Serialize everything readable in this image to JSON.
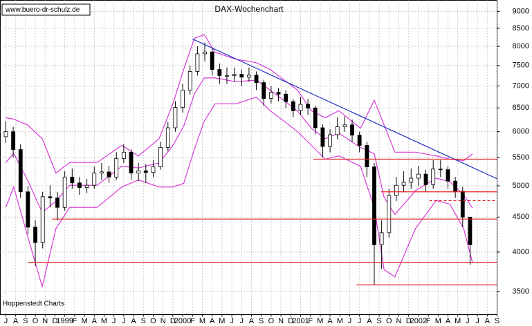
{
  "chart_data": {
    "type": "candlestick",
    "title": "DAX-Wochenchart",
    "watermark": "www.buero-dr-schulz.de",
    "source": "Hoppenstedt Charts",
    "log_y": true,
    "grid": true,
    "xlim": [
      -0.56,
      50
    ],
    "ylim": [
      3240,
      9340
    ],
    "yticks": [
      3500,
      4000,
      4500,
      5000,
      5500,
      6000,
      6500,
      7000,
      7500,
      8000,
      8500,
      9000
    ],
    "xticks": [
      {
        "value": 0,
        "label": "J"
      },
      {
        "value": 1,
        "label": "A"
      },
      {
        "value": 2,
        "label": "S"
      },
      {
        "value": 3,
        "label": "O"
      },
      {
        "value": 4,
        "label": "N"
      },
      {
        "value": 5,
        "label": "D"
      },
      {
        "value": 6,
        "label": "1999"
      },
      {
        "value": 7,
        "label": "F"
      },
      {
        "value": 8,
        "label": "M"
      },
      {
        "value": 9,
        "label": "A"
      },
      {
        "value": 10,
        "label": "M"
      },
      {
        "value": 11,
        "label": "J"
      },
      {
        "value": 12,
        "label": "J"
      },
      {
        "value": 13,
        "label": "A"
      },
      {
        "value": 14,
        "label": "S"
      },
      {
        "value": 15,
        "label": "O"
      },
      {
        "value": 16,
        "label": "N"
      },
      {
        "value": 17,
        "label": "D"
      },
      {
        "value": 18,
        "label": "2000"
      },
      {
        "value": 19,
        "label": "F"
      },
      {
        "value": 20,
        "label": "M"
      },
      {
        "value": 21,
        "label": "A"
      },
      {
        "value": 22,
        "label": "M"
      },
      {
        "value": 23,
        "label": "J"
      },
      {
        "value": 24,
        "label": "J"
      },
      {
        "value": 25,
        "label": "A"
      },
      {
        "value": 26,
        "label": "S"
      },
      {
        "value": 27,
        "label": "O"
      },
      {
        "value": 28,
        "label": "N"
      },
      {
        "value": 29,
        "label": "D"
      },
      {
        "value": 30,
        "label": "2001"
      },
      {
        "value": 31,
        "label": "F"
      },
      {
        "value": 32,
        "label": "M"
      },
      {
        "value": 33,
        "label": "A"
      },
      {
        "value": 34,
        "label": "M"
      },
      {
        "value": 35,
        "label": "J"
      },
      {
        "value": 36,
        "label": "J"
      },
      {
        "value": 37,
        "label": "A"
      },
      {
        "value": 38,
        "label": "S"
      },
      {
        "value": 39,
        "label": "O"
      },
      {
        "value": 40,
        "label": "N"
      },
      {
        "value": 41,
        "label": "D"
      },
      {
        "value": 42,
        "label": "2002"
      },
      {
        "value": 43,
        "label": "F"
      },
      {
        "value": 44,
        "label": "M"
      },
      {
        "value": 45,
        "label": "A"
      },
      {
        "value": 46,
        "label": "M"
      },
      {
        "value": 47,
        "label": "J"
      },
      {
        "value": 48,
        "label": "J"
      },
      {
        "value": 49,
        "label": "A"
      },
      {
        "value": 50,
        "label": "S"
      }
    ],
    "bars": {
      "x": [
        0,
        0.75,
        1.5,
        2.25,
        3,
        3.75,
        4.5,
        5.25,
        6,
        6.75,
        7.5,
        8.25,
        9,
        9.75,
        10.5,
        11.25,
        12,
        12.75,
        13.5,
        14.25,
        15,
        15.75,
        16.5,
        17.25,
        18,
        18.75,
        19.5,
        20.25,
        21,
        21.75,
        22.5,
        23.25,
        24,
        24.75,
        25.5,
        26.25,
        27,
        27.75,
        28.5,
        29.25,
        30,
        30.75,
        31.5,
        32.25,
        33,
        33.75,
        34.5,
        35.25,
        36,
        36.75,
        37.5,
        38.25,
        39,
        39.75,
        40.5,
        41.25,
        42,
        42.75,
        43.5,
        44.25,
        45,
        45.75,
        46.5,
        47.25
      ],
      "open": [
        5900,
        6000,
        5650,
        4900,
        4350,
        4130,
        4820,
        4800,
        4650,
        5150,
        5050,
        4970,
        5010,
        5220,
        5240,
        5150,
        5480,
        5600,
        5220,
        5260,
        5230,
        5330,
        5690,
        6080,
        6510,
        6900,
        7350,
        7800,
        7850,
        7400,
        7250,
        7250,
        7280,
        7210,
        7260,
        7080,
        6710,
        6850,
        6810,
        6640,
        6440,
        6580,
        6500,
        6080,
        5710,
        5940,
        6100,
        6140,
        5930,
        5730,
        5330,
        4100,
        4270,
        4840,
        5010,
        5060,
        5130,
        5200,
        5020,
        5290,
        5280,
        5080,
        4910,
        4500
      ],
      "high": [
        6220,
        6100,
        5750,
        5000,
        4450,
        4900,
        5010,
        4900,
        5250,
        5300,
        5150,
        5120,
        5330,
        5400,
        5350,
        5600,
        5750,
        5650,
        5400,
        5380,
        5450,
        5800,
        6200,
        6650,
        7050,
        7500,
        8000,
        8100,
        7950,
        7550,
        7450,
        7450,
        7400,
        7450,
        7350,
        7150,
        7000,
        6950,
        6900,
        6700,
        6750,
        6700,
        6550,
        6150,
        6050,
        6300,
        6320,
        6250,
        6000,
        5800,
        5400,
        4450,
        4950,
        5150,
        5250,
        5300,
        5350,
        5280,
        5450,
        5450,
        5350,
        5150,
        4980,
        4500
      ],
      "low": [
        5780,
        5500,
        4800,
        4250,
        3820,
        4050,
        4650,
        4450,
        4600,
        4950,
        4850,
        4880,
        4950,
        5100,
        5050,
        5100,
        5400,
        5100,
        5080,
        5050,
        5150,
        5280,
        5620,
        6000,
        6400,
        6800,
        7250,
        7600,
        7250,
        7050,
        7050,
        7100,
        7000,
        7100,
        6900,
        6550,
        6600,
        6650,
        6500,
        6300,
        6350,
        6350,
        5950,
        5500,
        5600,
        5850,
        6000,
        5800,
        5600,
        5150,
        3580,
        3780,
        4200,
        4750,
        4900,
        4950,
        5000,
        4900,
        4950,
        5150,
        4950,
        4800,
        4350,
        3830
      ],
      "close": [
        6000,
        5650,
        4900,
        4350,
        4130,
        4820,
        4800,
        4650,
        5150,
        5050,
        4970,
        5010,
        5220,
        5240,
        5150,
        5480,
        5600,
        5220,
        5260,
        5230,
        5330,
        5690,
        6080,
        6510,
        6900,
        7350,
        7800,
        7850,
        7400,
        7250,
        7250,
        7280,
        7210,
        7260,
        7080,
        6710,
        6850,
        6810,
        6640,
        6440,
        6580,
        6500,
        6080,
        5710,
        5940,
        6100,
        6140,
        5930,
        5730,
        5330,
        4100,
        4270,
        4840,
        5010,
        5060,
        5130,
        5200,
        5020,
        5290,
        5280,
        5080,
        4910,
        4500,
        4100
      ]
    },
    "bands": {
      "color": "#d838d8",
      "x": [
        0,
        0.8,
        2.2,
        3.7,
        5.1,
        6.5,
        9.3,
        11.8,
        13.5,
        15.6,
        17,
        18.1,
        19.2,
        20.2,
        21.3,
        23.4,
        25.5,
        26.9,
        28.3,
        29.7,
        31.1,
        32.5,
        33.9,
        36.1,
        37.5,
        38.5,
        39.6,
        41.7,
        43.8,
        45.2,
        46.6,
        47.5
      ],
      "upper": [
        6290,
        6260,
        6140,
        5860,
        5220,
        5410,
        5410,
        5730,
        5530,
        5860,
        6590,
        7400,
        8220,
        8320,
        7840,
        7660,
        7570,
        7400,
        7150,
        6900,
        6440,
        6290,
        6440,
        6070,
        6670,
        6140,
        5600,
        5600,
        5530,
        5470,
        5440,
        5570
      ],
      "middle": [
        5410,
        5580,
        5100,
        4570,
        4750,
        5010,
        5010,
        5340,
        5310,
        5400,
        5730,
        6110,
        6820,
        7190,
        7190,
        7100,
        7140,
        6900,
        6670,
        6430,
        6070,
        5860,
        5970,
        5690,
        5570,
        4810,
        4540,
        4920,
        5130,
        5070,
        4850,
        4640
      ],
      "lower": [
        4650,
        4980,
        4230,
        3560,
        4330,
        4650,
        4650,
        4980,
        5100,
        4980,
        4980,
        5040,
        5660,
        6220,
        6590,
        6590,
        6740,
        6440,
        6220,
        6000,
        5730,
        5470,
        5530,
        5340,
        4650,
        3770,
        3680,
        4330,
        4760,
        4700,
        4330,
        3860
      ]
    },
    "lines": [
      {
        "x": [
          19.0,
          50
        ],
        "y": [
          8200,
          5120
        ],
        "color": "#2030c0",
        "dashed": false
      },
      {
        "x": [
          2.25,
          50
        ],
        "y": [
          3860,
          3860
        ],
        "color": "#e02020",
        "dashed": false
      },
      {
        "x": [
          4.7,
          50
        ],
        "y": [
          4470,
          4470
        ],
        "color": "#e02020",
        "dashed": false
      },
      {
        "x": [
          31.3,
          50
        ],
        "y": [
          5470,
          5470
        ],
        "color": "#e02020",
        "dashed": false
      },
      {
        "x": [
          38.2,
          50
        ],
        "y": [
          4900,
          4900
        ],
        "color": "#e02020",
        "dashed": false
      },
      {
        "x": [
          43.1,
          50
        ],
        "y": [
          4757,
          4757
        ],
        "color": "#e02020",
        "dashed": true
      },
      {
        "x": [
          35.7,
          50
        ],
        "y": [
          3581,
          3581
        ],
        "color": "#e02020",
        "dashed": false
      }
    ]
  }
}
